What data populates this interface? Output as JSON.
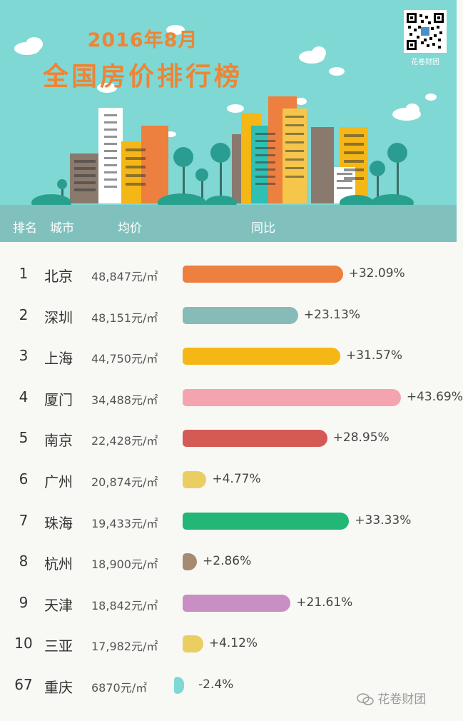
{
  "header": {
    "title_year": "2016年8月",
    "title_main": "全国房价排行榜",
    "qr_caption": "花卷财团"
  },
  "columns": {
    "rank": "排名",
    "city": "城市",
    "price": "均价",
    "yoy": "同比"
  },
  "colors": {
    "sky": "#7fd8d4",
    "header_band": "#80c1bd",
    "title": "#ef8434"
  },
  "chart_data": {
    "type": "bar",
    "title": "全国房价排行榜",
    "orientation": "horizontal",
    "categories": [
      "北京",
      "深圳",
      "上海",
      "厦门",
      "南京",
      "广州",
      "珠海",
      "杭州",
      "天津",
      "三亚",
      "重庆"
    ],
    "ranks": [
      "1",
      "2",
      "3",
      "4",
      "5",
      "6",
      "7",
      "8",
      "9",
      "10",
      "67"
    ],
    "prices": [
      "48,847元/㎡",
      "48,151元/㎡",
      "44,750元/㎡",
      "34,488元/㎡",
      "22,428元/㎡",
      "20,874元/㎡",
      "19,433元/㎡",
      "18,900元/㎡",
      "18,842元/㎡",
      "17,982元/㎡",
      "6870元/㎡"
    ],
    "values": [
      32.09,
      23.13,
      31.57,
      43.69,
      28.95,
      4.77,
      33.33,
      2.86,
      21.61,
      4.12,
      -2.4
    ],
    "labels": [
      "+32.09%",
      "+23.13%",
      "+31.57%",
      "+43.69%",
      "+28.95%",
      "+4.77%",
      "+33.33%",
      "+2.86%",
      "+21.61%",
      "+4.12%",
      "-2.4%"
    ],
    "bar_colors": [
      "#ed7f3f",
      "#86bbb7",
      "#f5b716",
      "#f4a4ae",
      "#d55a55",
      "#ebce61",
      "#22b677",
      "#a78a72",
      "#c98ec4",
      "#ebce61",
      "#7fd8d4"
    ]
  },
  "footer": {
    "brand": "花卷财团",
    "icon": "wechat-icon"
  }
}
